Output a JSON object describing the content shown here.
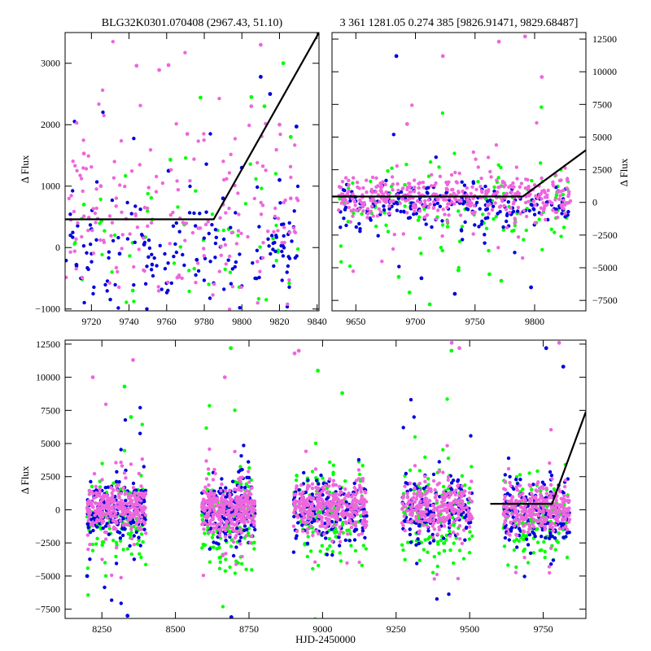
{
  "figure": {
    "colors": {
      "green": "#00ff00",
      "blue": "#0000dd",
      "magenta": "#ee66dd",
      "model": "#000000"
    }
  },
  "chart_data": [
    {
      "type": "scatter",
      "title": "BLG32K0301.070408 (2967.43, 51.10)",
      "xlabel": "",
      "ylabel": "Δ Flux",
      "xlim": [
        9706,
        9841
      ],
      "ylim": [
        -1030,
        3500
      ],
      "xticks": [
        9720,
        9740,
        9760,
        9780,
        9800,
        9820,
        9840
      ],
      "yticks": [
        -1000,
        0,
        1000,
        2000,
        3000
      ],
      "yaxis_side": "left",
      "grid": false,
      "model": {
        "name": "",
        "x": [
          9706,
          9785,
          9841
        ],
        "y": [
          460,
          460,
          3500
        ]
      },
      "series": [
        {
          "color": "green",
          "count": 60,
          "x_range": [
            9706,
            9830
          ],
          "y_center": 100,
          "y_spread": 600,
          "x": [
            9716,
            9742,
            9762,
            9778,
            9793,
            9805,
            9812,
            9822,
            9826
          ],
          "y": [
            700,
            -700,
            1430,
            2440,
            300,
            2450,
            2300,
            3000,
            1800
          ]
        },
        {
          "color": "blue",
          "count": 160,
          "x_range": [
            9706,
            9830
          ],
          "y_center": 0,
          "y_spread": 500,
          "x": [
            9712,
            9720,
            9735,
            9748,
            9761,
            9776,
            9790,
            9800,
            9810,
            9815,
            9820,
            9829
          ],
          "y": [
            -280,
            300,
            -100,
            50,
            1250,
            -200,
            800,
            1300,
            2780,
            2500,
            1100,
            1970
          ]
        },
        {
          "color": "magenta",
          "count": 200,
          "x_range": [
            9706,
            9830
          ],
          "y_center": 500,
          "y_spread": 800,
          "x": [
            9716,
            9725,
            9744,
            9756,
            9761,
            9771,
            9790,
            9805,
            9810,
            9820,
            9826
          ],
          "y": [
            1530,
            1000,
            2960,
            2890,
            2970,
            1850,
            700,
            2300,
            3300,
            2000,
            800
          ]
        }
      ]
    },
    {
      "type": "scatter",
      "title": "3 361 1281.05 0.274 385 [9826.91471, 9829.68487]",
      "xlabel": "",
      "ylabel": "Δ Flux",
      "xlim": [
        9630,
        9843
      ],
      "ylim": [
        -8300,
        13000
      ],
      "xticks": [
        9650,
        9700,
        9750,
        9800
      ],
      "yticks": [
        -7500,
        -5000,
        -2500,
        0,
        2500,
        5000,
        7500,
        10000,
        12500
      ],
      "yaxis_side": "right",
      "grid": false,
      "model": {
        "name": "",
        "x": [
          9630,
          9790,
          9843
        ],
        "y": [
          450,
          450,
          4000
        ]
      },
      "series": [
        {
          "color": "green",
          "count": 120,
          "x_range": [
            9635,
            9830
          ],
          "y_center": -700,
          "y_spread": 1800,
          "x": [
            9686,
            9695,
            9712,
            9736,
            9762,
            9772
          ],
          "y": [
            -5700,
            -6900,
            -7800,
            -5200,
            -5500,
            -6000
          ]
        },
        {
          "color": "blue",
          "count": 220,
          "x_range": [
            9635,
            9830
          ],
          "y_center": -200,
          "y_spread": 900,
          "x": [
            9684,
            9705,
            9733,
            9797
          ],
          "y": [
            11200,
            -5800,
            -7000,
            -6500
          ]
        },
        {
          "color": "magenta",
          "count": 420,
          "x_range": [
            9635,
            9830
          ],
          "y_center": 450,
          "y_spread": 800,
          "x": [
            9693,
            9723,
            9770,
            9806,
            9792
          ],
          "y": [
            6000,
            11200,
            12300,
            9600,
            12700
          ]
        }
      ]
    },
    {
      "type": "scatter",
      "title": "",
      "xlabel": "HJD-2450000",
      "ylabel": "Δ Flux",
      "xlim": [
        8125,
        9895
      ],
      "ylim": [
        -8200,
        12800
      ],
      "xticks": [
        8250,
        8500,
        8750,
        9000,
        9250,
        9500,
        9750
      ],
      "yticks": [
        -7500,
        -5000,
        -2500,
        0,
        2500,
        5000,
        7500,
        10000,
        12500
      ],
      "yaxis_side": "left",
      "grid": false,
      "model": {
        "name": "",
        "x": [
          9570,
          9780,
          9895
        ],
        "y": [
          450,
          450,
          7400
        ]
      },
      "seasons": [
        [
          8200,
          8400
        ],
        [
          8590,
          8770
        ],
        [
          8900,
          9150
        ],
        [
          9270,
          9510
        ],
        [
          9615,
          9840
        ]
      ],
      "series": [
        {
          "color": "green",
          "count": 750,
          "y_center": -600,
          "y_spread": 1700,
          "x": [
            8327,
            8349,
            8688,
            8984,
            9067,
            9438
          ],
          "y": [
            9300,
            7000,
            12200,
            10500,
            8800,
            12000
          ]
        },
        {
          "color": "blue",
          "count": 850,
          "y_center": -100,
          "y_spread": 1200,
          "x": [
            8200,
            8337,
            8690,
            9760,
            9818
          ],
          "y": [
            -5000,
            -8000,
            -8100,
            12200,
            10800
          ]
        },
        {
          "color": "magenta",
          "count": 1500,
          "y_center": 100,
          "y_spread": 900,
          "x": [
            8219,
            8356,
            8668,
            8905,
            8919,
            9439,
            9465,
            9804
          ],
          "y": [
            10000,
            11300,
            10000,
            11800,
            12000,
            12600,
            12200,
            12600
          ]
        }
      ]
    }
  ]
}
